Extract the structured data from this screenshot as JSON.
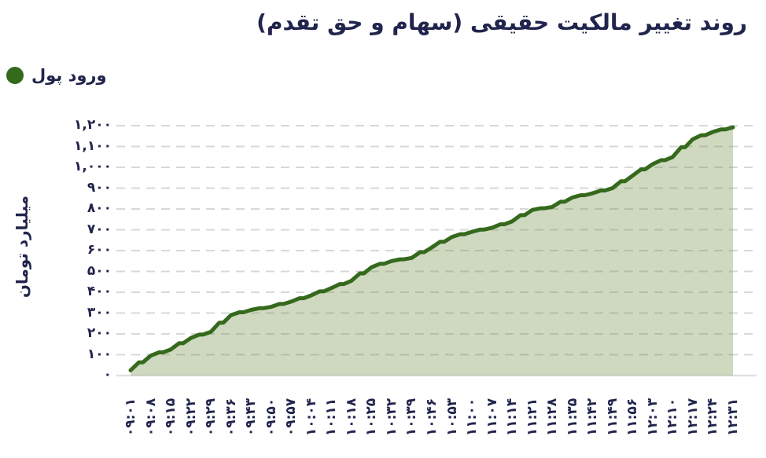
{
  "title": "روند تغییر مالکیت حقیقی (سهام و حق تقدم)",
  "legend": {
    "label": "ورود پول"
  },
  "y_axis": {
    "title": "میلیارد تومان"
  },
  "colors": {
    "ink": "#21244c",
    "line": "#35691c",
    "fill": "rgba(106,141,63,0.33)",
    "grid": "#d8d8d8",
    "baseline": "#e1e1e1"
  },
  "chart_data": {
    "type": "area",
    "title": "روند تغییر مالکیت حقیقی (سهام و حق تقدم)",
    "ylabel": "میلیارد تومان",
    "xlabel": "",
    "legend_entries": [
      "ورود پول"
    ],
    "legend_position": "top-left",
    "grid": "dashed-horizontal",
    "ylim": [
      0,
      1200
    ],
    "y_ticks": {
      "values": [
        0,
        100,
        200,
        300,
        400,
        500,
        600,
        700,
        800,
        900,
        1000,
        1100,
        1200
      ],
      "labels": [
        "۰",
        "۱۰۰",
        "۲۰۰",
        "۳۰۰",
        "۴۰۰",
        "۵۰۰",
        "۶۰۰",
        "۷۰۰",
        "۸۰۰",
        "۹۰۰",
        "۱,۰۰۰",
        "۱,۱۰۰",
        "۱,۲۰۰"
      ]
    },
    "x": [
      "۰۹:۰۱",
      "۰۹:۰۸",
      "۰۹:۱۵",
      "۰۹:۲۲",
      "۰۹:۲۹",
      "۰۹:۳۶",
      "۰۹:۴۳",
      "۰۹:۵۰",
      "۰۹:۵۷",
      "۱۰:۰۴",
      "۱۰:۱۱",
      "۱۰:۱۸",
      "۱۰:۲۵",
      "۱۰:۳۲",
      "۱۰:۳۹",
      "۱۰:۴۶",
      "۱۰:۵۳",
      "۱۱:۰۰",
      "۱۱:۰۷",
      "۱۱:۱۴",
      "۱۱:۲۱",
      "۱۱:۲۸",
      "۱۱:۳۵",
      "۱۱:۴۲",
      "۱۱:۴۹",
      "۱۱:۵۶",
      "۱۲:۰۳",
      "۱۲:۱۰",
      "۱۲:۱۷",
      "۱۲:۲۴",
      "۱۲:۳۱"
    ],
    "series": [
      {
        "name": "ورود پول",
        "values": [
          25,
          95,
          125,
          180,
          210,
          290,
          315,
          330,
          355,
          385,
          420,
          455,
          520,
          550,
          565,
          615,
          665,
          690,
          710,
          740,
          795,
          810,
          855,
          875,
          900,
          960,
          1015,
          1050,
          1135,
          1170,
          1192
        ]
      }
    ]
  }
}
